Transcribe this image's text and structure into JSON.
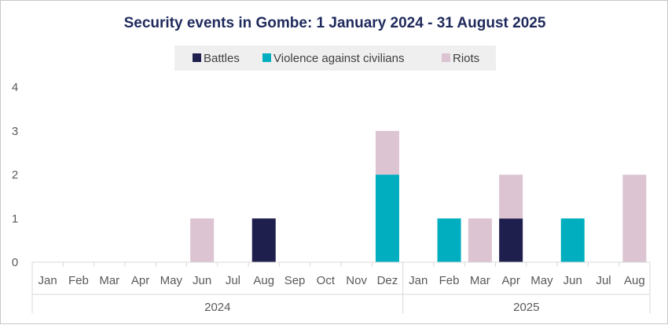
{
  "chart_data": {
    "type": "bar",
    "stacked": true,
    "title": "Security events in Gombe: 1 January 2024 - 31 August 2025",
    "categories": [
      "Jan",
      "Feb",
      "Mar",
      "Apr",
      "May",
      "Jun",
      "Jul",
      "Aug",
      "Sep",
      "Oct",
      "Nov",
      "Dez",
      "Jan",
      "Feb",
      "Mar",
      "Apr",
      "May",
      "Jun",
      "Jul",
      "Aug"
    ],
    "groups": [
      {
        "label": "2024",
        "start": 0,
        "count": 12
      },
      {
        "label": "2025",
        "start": 12,
        "count": 8
      }
    ],
    "series": [
      {
        "name": "Battles",
        "color": "#1f1f4d",
        "values": [
          0,
          0,
          0,
          0,
          0,
          0,
          0,
          1,
          0,
          0,
          0,
          0,
          0,
          0,
          0,
          1,
          0,
          0,
          0,
          0
        ]
      },
      {
        "name": "Violence against civilians",
        "color": "#00aebf",
        "values": [
          0,
          0,
          0,
          0,
          0,
          0,
          0,
          0,
          0,
          0,
          0,
          2,
          0,
          1,
          0,
          0,
          0,
          1,
          0,
          0
        ]
      },
      {
        "name": "Riots",
        "color": "#dcc4d2",
        "values": [
          0,
          0,
          0,
          0,
          0,
          1,
          0,
          0,
          0,
          0,
          0,
          1,
          0,
          0,
          1,
          1,
          0,
          0,
          0,
          2
        ]
      }
    ],
    "ylim": [
      0,
      4
    ],
    "yticks": [
      0,
      1,
      2,
      3,
      4
    ],
    "xlabel": "",
    "ylabel": "",
    "legend_position": "top"
  }
}
